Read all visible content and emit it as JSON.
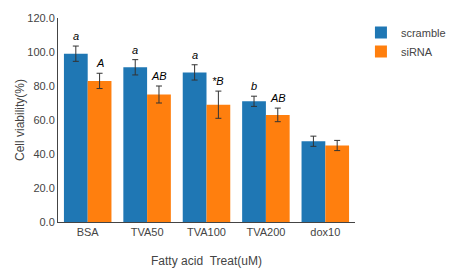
{
  "chart_data": {
    "type": "bar",
    "xlabel": "Fatty acid  Treat(uM)",
    "ylabel": "Cell viability(%)",
    "categories": [
      "BSA",
      "TVA50",
      "TVA100",
      "TVA200",
      "dox10"
    ],
    "series": [
      {
        "name": "scramble",
        "values": [
          99.0,
          91.0,
          88.0,
          71.0,
          47.5
        ],
        "errors": [
          4.5,
          4.5,
          4.5,
          3.0,
          3.0
        ],
        "labels": [
          "a",
          "a",
          "a",
          "b",
          null
        ]
      },
      {
        "name": "siRNA",
        "values": [
          83.0,
          75.0,
          69.0,
          63.0,
          45.0
        ],
        "errors": [
          4.5,
          5.0,
          8.0,
          4.0,
          3.0
        ],
        "labels": [
          "A",
          "AB",
          "*B",
          "AB",
          null
        ]
      }
    ],
    "ylim": [
      0.0,
      120.0
    ],
    "yticks": [
      {
        "value": 0.0,
        "label": "0.0"
      },
      {
        "value": 20.0,
        "label": "20.0"
      },
      {
        "value": 40.0,
        "label": "40.0"
      },
      {
        "value": 60.0,
        "label": "60.0"
      },
      {
        "value": 80.0,
        "label": "80.0"
      },
      {
        "value": 100.0,
        "label": "100.0"
      },
      {
        "value": 120.0,
        "label": "120.0"
      }
    ],
    "grid": false,
    "legend": "right"
  }
}
